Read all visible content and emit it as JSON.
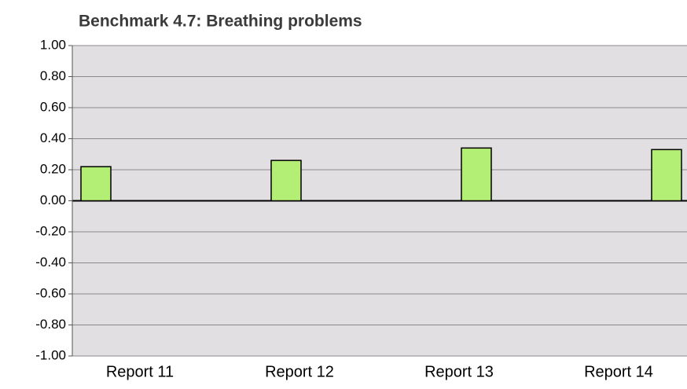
{
  "chart_data": {
    "type": "bar",
    "title": "Benchmark 4.7:  Breathing problems",
    "categories": [
      "Report 11",
      "Report 12",
      "Report 13",
      "Report 14"
    ],
    "values": [
      0.22,
      0.26,
      0.34,
      0.33
    ],
    "color": "#b3ef74",
    "ylim": [
      -1,
      1
    ],
    "yticks": [
      {
        "value": -1,
        "label": "-1.00"
      },
      {
        "value": -0.8,
        "label": "-0.80"
      },
      {
        "value": -0.6,
        "label": "-0.60"
      },
      {
        "value": -0.4,
        "label": "-0.40"
      },
      {
        "value": -0.2,
        "label": "-0.20"
      },
      {
        "value": 0,
        "label": "0.00"
      },
      {
        "value": 0.2,
        "label": "0.20"
      },
      {
        "value": 0.4,
        "label": "0.40"
      },
      {
        "value": 0.6,
        "label": "0.60"
      },
      {
        "value": 0.8,
        "label": "0.80"
      },
      {
        "value": 1,
        "label": "1.00"
      }
    ],
    "grid": true
  }
}
